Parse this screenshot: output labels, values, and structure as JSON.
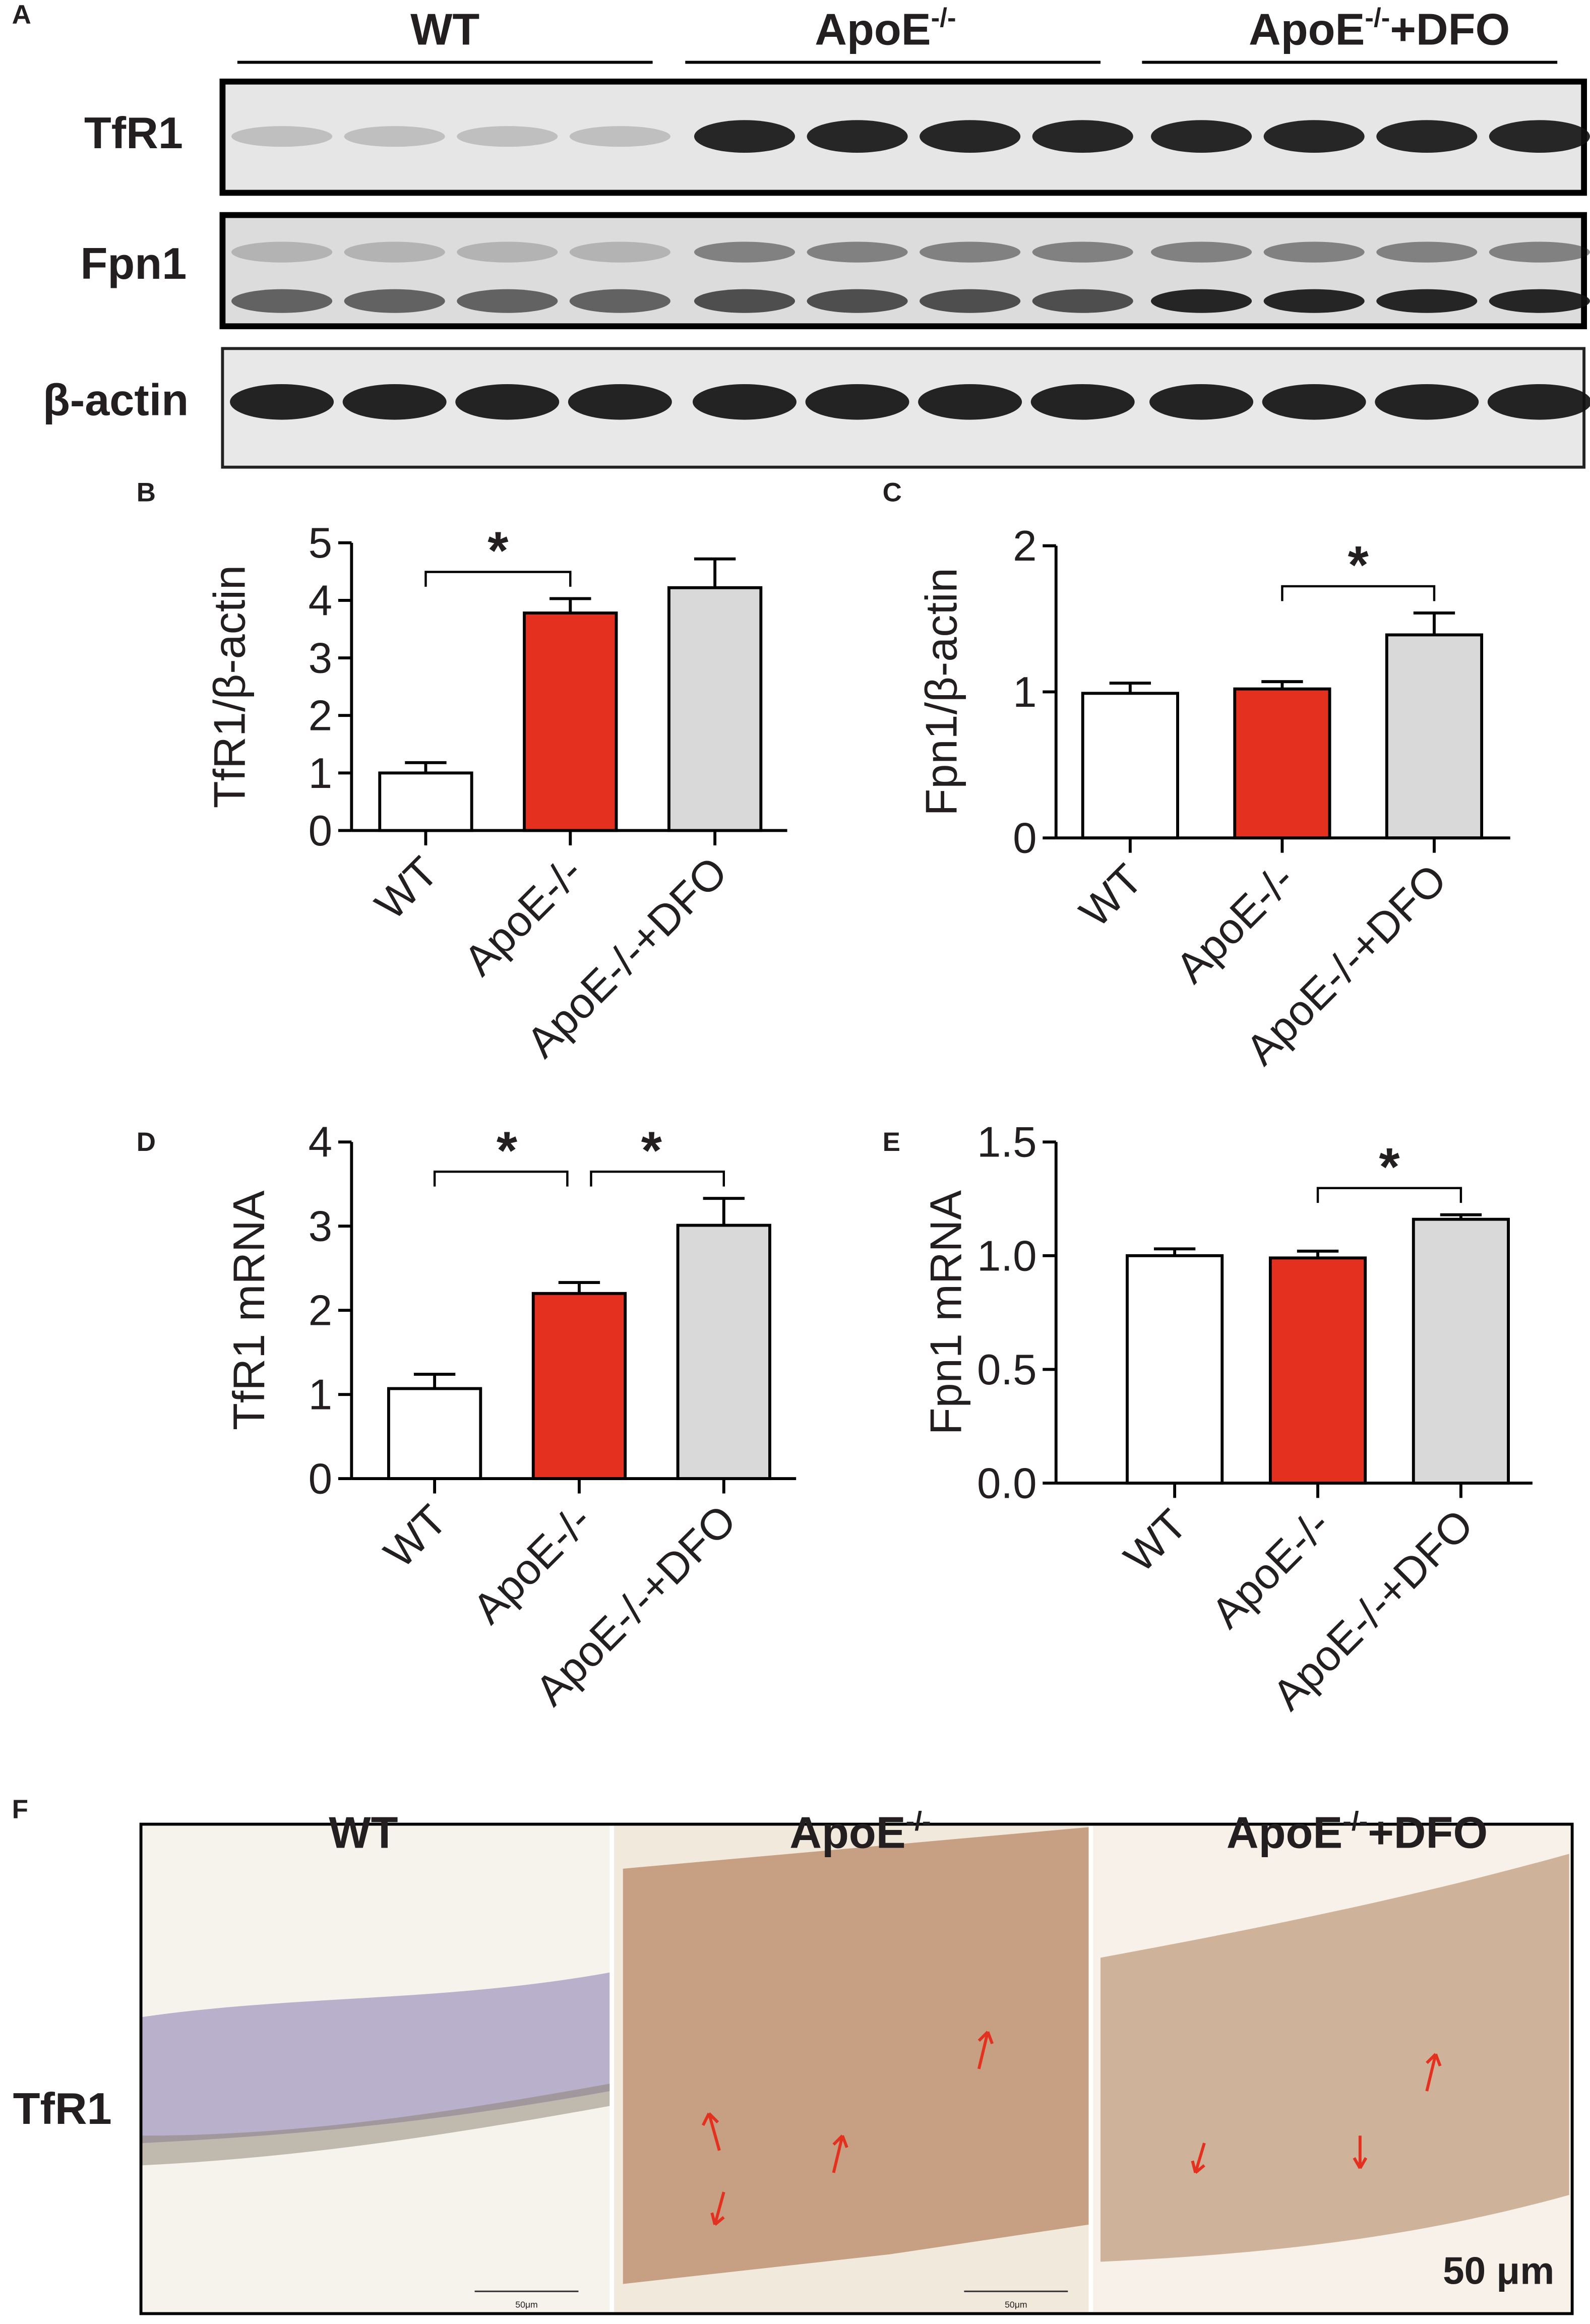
{
  "panel_labels": [
    "A",
    "B",
    "C",
    "D",
    "E",
    "F"
  ],
  "western_blot": {
    "groups": [
      {
        "base": "WT"
      },
      {
        "base": "ApoE",
        "sup": "-/-"
      },
      {
        "base": "ApoE",
        "sup": "-/-",
        "suffix": "+DFO"
      }
    ],
    "rows": [
      "TfR1",
      "Fpn1",
      "β-actin"
    ]
  },
  "chart_data": [
    {
      "type": "bar",
      "ylabel": "TfR1/β-actin",
      "categories": [
        "WT",
        "ApoE-/-",
        "ApoE-/-+DFO"
      ],
      "values": [
        1.0,
        3.78,
        4.22
      ],
      "errors": [
        0.18,
        0.25,
        0.5
      ],
      "colors": [
        "#ffffff",
        "#e3301f",
        "#d9d9d9"
      ],
      "ylim": [
        0,
        5
      ],
      "yticks": [
        0,
        1,
        2,
        3,
        4,
        5
      ],
      "significance": [
        {
          "from": "WT",
          "to": "ApoE-/-",
          "label": "*"
        }
      ]
    },
    {
      "type": "bar",
      "ylabel": "Fpn1/β-actin",
      "categories": [
        "WT",
        "ApoE-/-",
        "ApoE-/-+DFO"
      ],
      "values": [
        0.99,
        1.02,
        1.39
      ],
      "errors": [
        0.07,
        0.05,
        0.15
      ],
      "colors": [
        "#ffffff",
        "#e3301f",
        "#d9d9d9"
      ],
      "ylim": [
        0,
        2
      ],
      "yticks": [
        0,
        1,
        2
      ],
      "significance": [
        {
          "from": "ApoE-/-",
          "to": "ApoE-/-+DFO",
          "label": "*"
        }
      ]
    },
    {
      "type": "bar",
      "ylabel": "TfR1 mRNA",
      "categories": [
        "WT",
        "ApoE-/-",
        "ApoE-/-+DFO"
      ],
      "values": [
        1.07,
        2.2,
        3.01
      ],
      "errors": [
        0.17,
        0.13,
        0.32
      ],
      "colors": [
        "#ffffff",
        "#e3301f",
        "#d9d9d9"
      ],
      "ylim": [
        0,
        4
      ],
      "yticks": [
        0,
        1,
        2,
        3,
        4
      ],
      "significance": [
        {
          "from": "WT",
          "to": "ApoE-/-",
          "label": "*"
        },
        {
          "from": "ApoE-/-",
          "to": "ApoE-/-+DFO",
          "label": "*"
        }
      ]
    },
    {
      "type": "bar",
      "ylabel": "Fpn1 mRNA",
      "categories": [
        "WT",
        "ApoE-/-",
        "ApoE-/-+DFO"
      ],
      "values": [
        1.0,
        0.99,
        1.16
      ],
      "errors": [
        0.03,
        0.03,
        0.02
      ],
      "colors": [
        "#ffffff",
        "#e3301f",
        "#d9d9d9"
      ],
      "ylim": [
        0,
        1.5
      ],
      "yticks": [
        {
          "value": 0,
          "label": "0.0"
        },
        0.5,
        {
          "value": 1,
          "label": "1.0"
        },
        1.5
      ],
      "significance": [
        {
          "from": "ApoE-/-",
          "to": "ApoE-/-+DFO",
          "label": "*"
        }
      ]
    }
  ],
  "histology": {
    "groups": [
      {
        "base": "WT"
      },
      {
        "base": "ApoE",
        "sup": "-/-"
      },
      {
        "base": "ApoE",
        "sup": "-/-",
        "suffix": "+DFO"
      }
    ],
    "row_label": "TfR1",
    "micro_scale_label": "50μm",
    "scale_bar_label": "50 μm"
  }
}
